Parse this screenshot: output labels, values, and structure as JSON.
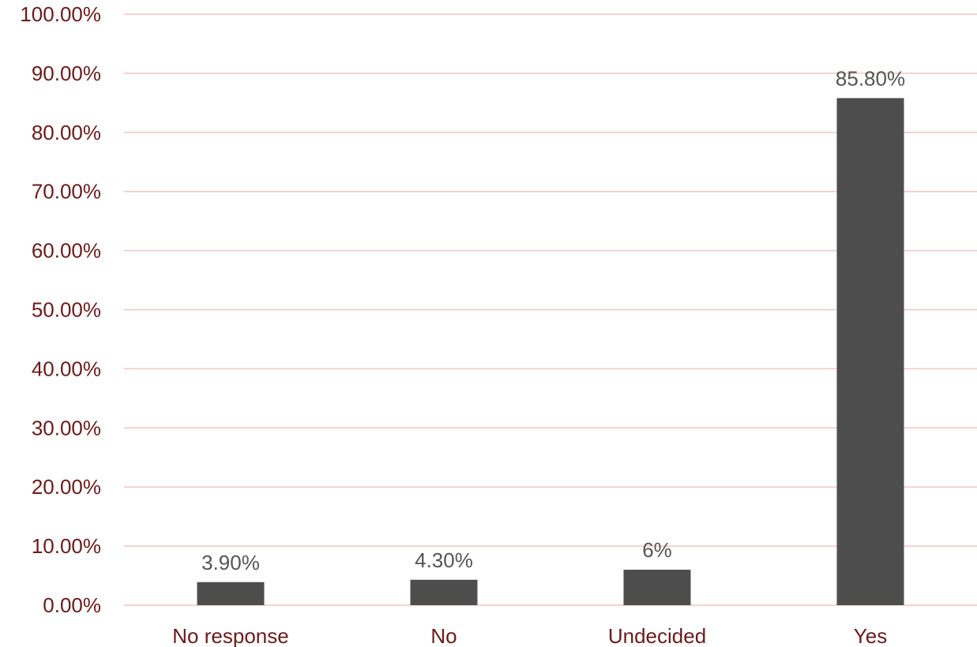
{
  "chart_data": {
    "type": "bar",
    "categories": [
      "No response",
      "No",
      "Undecided",
      "Yes"
    ],
    "values": [
      3.9,
      4.3,
      6.0,
      85.8
    ],
    "data_labels": [
      "3.90%",
      "4.30%",
      "6%",
      "85.80%"
    ],
    "y_ticks": [
      "0.00%",
      "10.00%",
      "20.00%",
      "30.00%",
      "40.00%",
      "50.00%",
      "60.00%",
      "70.00%",
      "80.00%",
      "90.00%",
      "100.00%"
    ],
    "ylim": [
      0,
      100
    ],
    "title": "",
    "xlabel": "",
    "ylabel": "",
    "grid": true,
    "legend": "none",
    "colors": {
      "bar": "#4d4d4d",
      "grid": "#f2c4c4",
      "axis_text": "#6b1a1a",
      "data_label": "#555555"
    }
  }
}
